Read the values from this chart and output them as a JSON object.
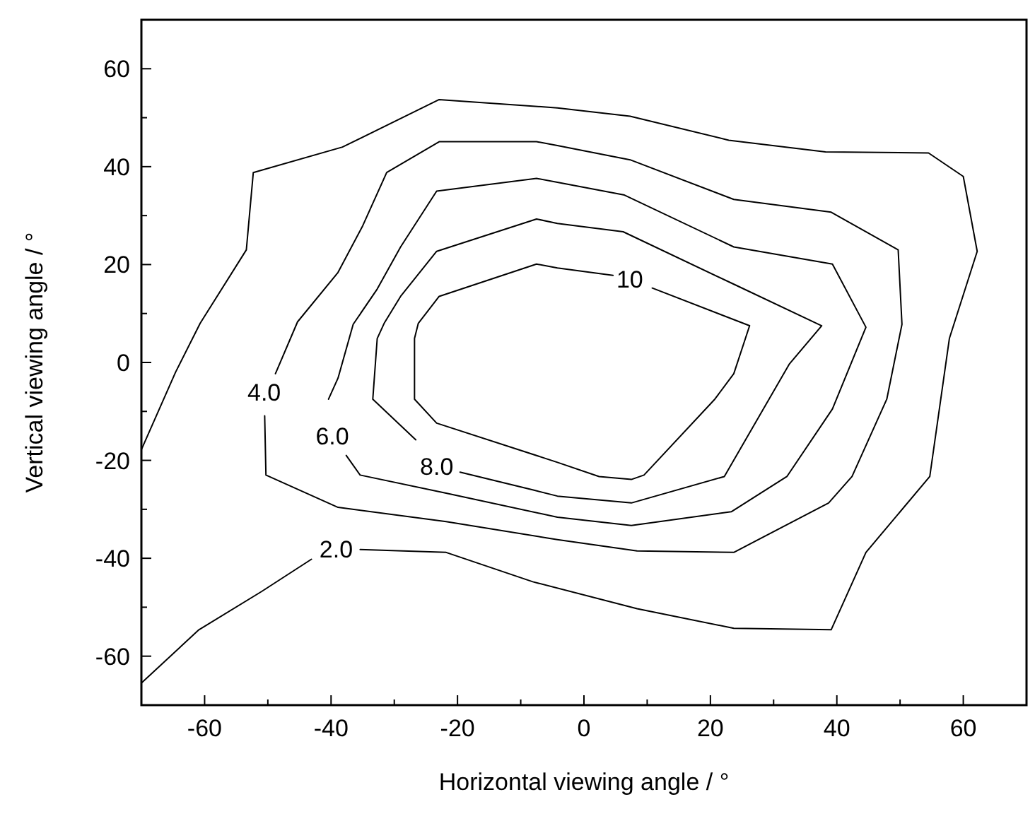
{
  "chart_data": {
    "type": "line",
    "xlabel": "Horizontal viewing angle / °",
    "ylabel": "Vertical viewing angle / °",
    "xlim": [
      -70,
      70
    ],
    "ylim": [
      -70,
      70
    ],
    "xticks": [
      {
        "value": -70,
        "label": null
      },
      -60,
      {
        "value": -50,
        "label": null
      },
      -40,
      {
        "value": -30,
        "label": null
      },
      -20,
      {
        "value": -10,
        "label": null
      },
      0,
      {
        "value": 10,
        "label": null
      },
      20,
      {
        "value": 30,
        "label": null
      },
      40,
      {
        "value": 50,
        "label": null
      },
      60,
      {
        "value": 70,
        "label": null
      }
    ],
    "yticks": [
      {
        "value": -70,
        "label": null
      },
      -60,
      {
        "value": -50,
        "label": null
      },
      -40,
      {
        "value": -30,
        "label": null
      },
      -20,
      {
        "value": -10,
        "label": null
      },
      0,
      {
        "value": 10,
        "label": null
      },
      20,
      {
        "value": 30,
        "label": null
      },
      40,
      {
        "value": 50,
        "label": null
      },
      60,
      {
        "value": 70,
        "label": null
      }
    ],
    "grid": false,
    "legend": false,
    "marker": "none",
    "line_style": "solid",
    "series": [
      {
        "name": "2.0",
        "color": "#000000",
        "x": [
          -35.4,
          -21.8,
          -8.1,
          8.4,
          23.7,
          39.1,
          44.6,
          54.7,
          57.8,
          62.2,
          60,
          54.5,
          38.2,
          22.9,
          7.3,
          -4.2,
          -22.9,
          -38.2,
          -52.3,
          -53.4,
          -60.7,
          -64.6,
          -70
        ],
        "values": [
          -38.2,
          -38.8,
          -44.8,
          -50.3,
          -54.3,
          -54.6,
          -38.8,
          -23.3,
          4.9,
          22.7,
          38,
          42.8,
          43,
          45.4,
          50.3,
          52,
          53.7,
          44,
          38.8,
          23,
          8,
          -2,
          -17.8
        ]
      },
      {
        "color": "#000000",
        "x": [
          -70,
          -60.9,
          -51,
          -43.1
        ],
        "values": [
          -65.5,
          -54.6,
          -46.8,
          -40.2
        ]
      },
      {
        "name": "4.0",
        "color": "#000000",
        "x": [
          -50.5,
          -50.3,
          -38.9,
          -21.8,
          -4.2,
          8.4,
          23.7,
          38.7,
          42.4,
          47.9,
          50.3,
          49.7,
          39.1,
          23.7,
          7.3,
          -4.2,
          -7.5,
          -22.9,
          -31.2,
          -35,
          -38.9,
          -45.3,
          -48.8
        ],
        "values": [
          -10.9,
          -23,
          -29.6,
          -32.5,
          -36.2,
          -38.5,
          -38.8,
          -28.7,
          -23.3,
          -7.5,
          7.8,
          23,
          30.7,
          33.3,
          41.4,
          44.3,
          45.1,
          45.1,
          38.8,
          27.9,
          18.4,
          8.3,
          -2.3
        ]
      },
      {
        "name": "6.0",
        "color": "#000000",
        "x": [
          -37.6,
          -35.4,
          -21.8,
          -4.2,
          7.5,
          23.3,
          32.1,
          39.3,
          44.6,
          39.3,
          23.7,
          6.4,
          -4.2,
          -7.5,
          -23.3,
          -29,
          -32.7,
          -36.5,
          -38.9,
          -40.4
        ],
        "values": [
          -19,
          -23,
          -26.7,
          -31.6,
          -33.3,
          -30.5,
          -23.3,
          -9.5,
          7.2,
          20.1,
          23.6,
          34.2,
          36.8,
          37.6,
          35,
          23.6,
          15,
          7.8,
          -3.2,
          -7.5
        ]
      },
      {
        "name": "8.0",
        "color": "#000000",
        "x": [
          -19.6,
          -7.9,
          -4.2,
          7.5,
          22.2,
          32.5,
          37.6,
          24,
          6.2,
          -4.2,
          -7.5,
          -23.3,
          -29,
          -31.6,
          -32.7,
          -33.4,
          -26.6
        ],
        "values": [
          -22.4,
          -26.1,
          -27.3,
          -28.7,
          -23.3,
          -0.3,
          7.5,
          15.8,
          26.7,
          28.4,
          29.3,
          22.7,
          13.5,
          8,
          4.9,
          -7.5,
          -15.8
        ]
      },
      {
        "name": "10",
        "color": "#000000",
        "x": [
          10.8,
          26.2,
          23.7,
          20.7,
          9.5,
          7.5,
          2.4,
          -4.2,
          -23.3,
          -26.8,
          -26.8,
          -26.2,
          -22.9,
          -7.5,
          -4.2,
          4.6
        ],
        "values": [
          15.2,
          7.5,
          -2.3,
          -7.5,
          -23,
          -23.9,
          -23.3,
          -20.4,
          -12.4,
          -7.5,
          4.9,
          8,
          13.5,
          20.1,
          19.3,
          17.8
        ]
      }
    ]
  }
}
